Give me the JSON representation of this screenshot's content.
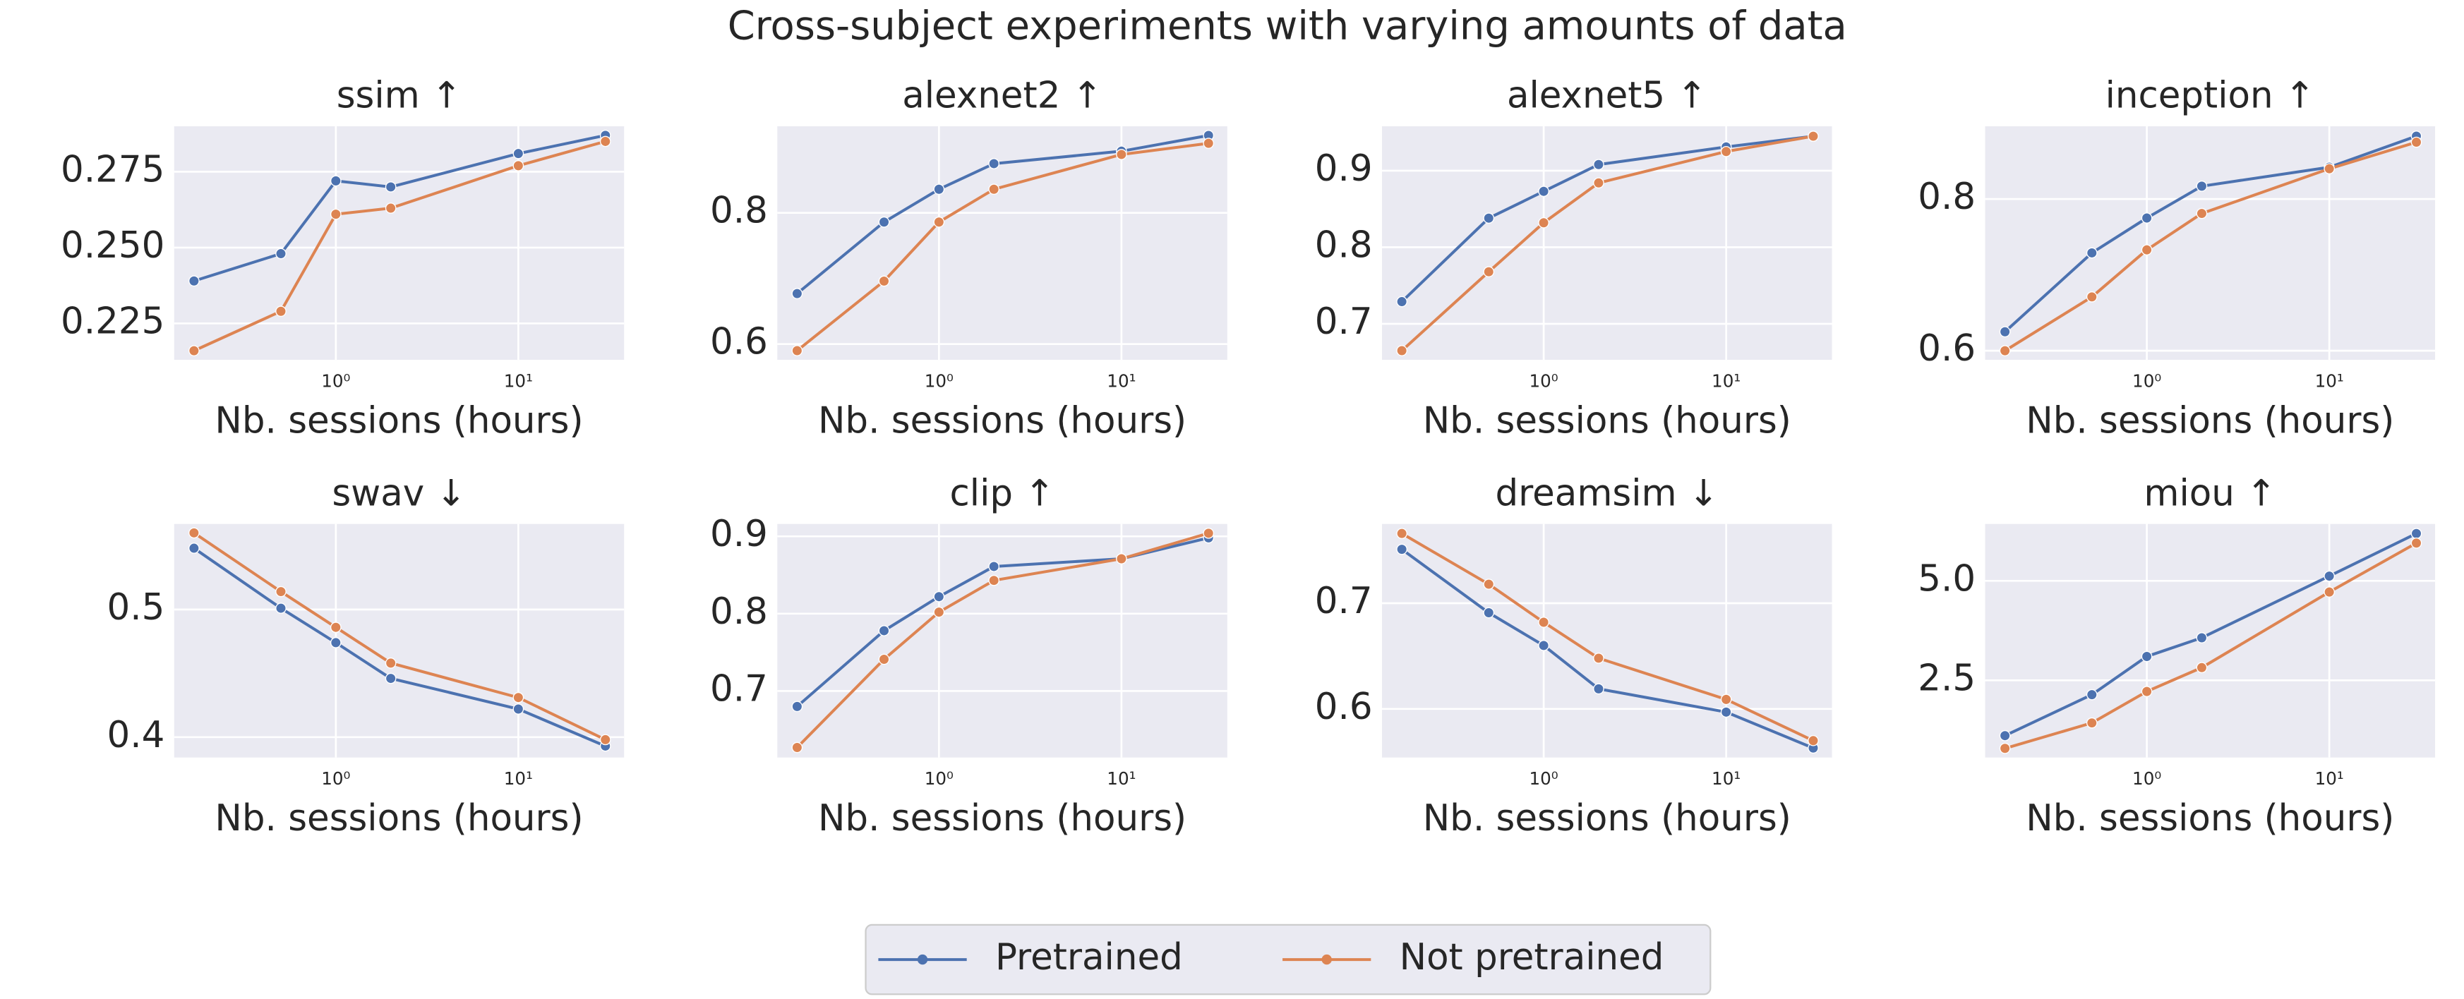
{
  "title": "Cross-subject experiments with varying amounts of data",
  "legend_position": "lower center",
  "chart_data": [
    {
      "type": "line",
      "title": "ssim ↑",
      "x_label": "Nb. sessions (hours)",
      "xscale": "log",
      "grid": true,
      "x": [
        0.167,
        0.5,
        1,
        2,
        10,
        30
      ],
      "xlim": [
        0.13,
        38
      ],
      "xticks": [
        {
          "value": 1,
          "label": "10⁰"
        },
        {
          "value": 10,
          "label": "10¹"
        }
      ],
      "ylim": [
        0.213,
        0.29
      ],
      "yticks": [
        0.225,
        {
          "value": 0.25,
          "label": "0.250"
        },
        0.275
      ],
      "series": [
        {
          "name": "Pretrained",
          "color": "#4c72b0",
          "values": [
            0.239,
            0.248,
            0.272,
            0.27,
            0.281,
            0.287
          ]
        },
        {
          "name": "Not pretrained",
          "color": "#dd8452",
          "values": [
            0.216,
            0.229,
            0.261,
            0.263,
            0.277,
            0.285
          ]
        }
      ]
    },
    {
      "type": "line",
      "title": "alexnet2 ↑",
      "x_label": "Nb. sessions (hours)",
      "xscale": "log",
      "grid": true,
      "x": [
        0.167,
        0.5,
        1,
        2,
        10,
        30
      ],
      "xlim": [
        0.13,
        38
      ],
      "xticks": [
        {
          "value": 1,
          "label": "10⁰"
        },
        {
          "value": 10,
          "label": "10¹"
        }
      ],
      "ylim": [
        0.576,
        0.932
      ],
      "yticks": [
        0.6,
        0.8
      ],
      "series": [
        {
          "name": "Pretrained",
          "color": "#4c72b0",
          "values": [
            0.677,
            0.786,
            0.836,
            0.875,
            0.894,
            0.918
          ]
        },
        {
          "name": "Not pretrained",
          "color": "#dd8452",
          "values": [
            0.59,
            0.696,
            0.786,
            0.836,
            0.889,
            0.906
          ]
        }
      ]
    },
    {
      "type": "line",
      "title": "alexnet5 ↑",
      "x_label": "Nb. sessions (hours)",
      "xscale": "log",
      "grid": true,
      "x": [
        0.167,
        0.5,
        1,
        2,
        10,
        30
      ],
      "xlim": [
        0.13,
        38
      ],
      "xticks": [
        {
          "value": 1,
          "label": "10⁰"
        },
        {
          "value": 10,
          "label": "10¹"
        }
      ],
      "ylim": [
        0.653,
        0.958
      ],
      "yticks": [
        0.7,
        0.8,
        0.9
      ],
      "series": [
        {
          "name": "Pretrained",
          "color": "#4c72b0",
          "values": [
            0.729,
            0.838,
            0.873,
            0.908,
            0.931,
            0.945
          ]
        },
        {
          "name": "Not pretrained",
          "color": "#dd8452",
          "values": [
            0.665,
            0.768,
            0.832,
            0.884,
            0.925,
            0.945
          ]
        }
      ]
    },
    {
      "type": "line",
      "title": "inception ↑",
      "x_label": "Nb. sessions (hours)",
      "xscale": "log",
      "grid": true,
      "x": [
        0.167,
        0.5,
        1,
        2,
        10,
        30
      ],
      "xlim": [
        0.13,
        38
      ],
      "xticks": [
        {
          "value": 1,
          "label": "10⁰"
        },
        {
          "value": 10,
          "label": "10¹"
        }
      ],
      "ylim": [
        0.588,
        0.896
      ],
      "yticks": [
        0.6,
        0.8
      ],
      "series": [
        {
          "name": "Pretrained",
          "color": "#4c72b0",
          "values": [
            0.625,
            0.729,
            0.775,
            0.817,
            0.842,
            0.883
          ]
        },
        {
          "name": "Not pretrained",
          "color": "#dd8452",
          "values": [
            0.6,
            0.671,
            0.733,
            0.781,
            0.84,
            0.875
          ]
        }
      ]
    },
    {
      "type": "line",
      "title": "swav ↓",
      "x_label": "Nb. sessions (hours)",
      "xscale": "log",
      "grid": true,
      "x": [
        0.167,
        0.5,
        1,
        2,
        10,
        30
      ],
      "xlim": [
        0.13,
        38
      ],
      "xticks": [
        {
          "value": 1,
          "label": "10⁰"
        },
        {
          "value": 10,
          "label": "10¹"
        }
      ],
      "ylim": [
        0.384,
        0.567
      ],
      "yticks": [
        0.4,
        0.5
      ],
      "series": [
        {
          "name": "Pretrained",
          "color": "#4c72b0",
          "values": [
            0.548,
            0.501,
            0.474,
            0.446,
            0.422,
            0.393
          ]
        },
        {
          "name": "Not pretrained",
          "color": "#dd8452",
          "values": [
            0.56,
            0.514,
            0.486,
            0.458,
            0.431,
            0.398
          ]
        }
      ]
    },
    {
      "type": "line",
      "title": "clip ↑",
      "x_label": "Nb. sessions (hours)",
      "xscale": "log",
      "grid": true,
      "x": [
        0.167,
        0.5,
        1,
        2,
        10,
        30
      ],
      "xlim": [
        0.13,
        38
      ],
      "xticks": [
        {
          "value": 1,
          "label": "10⁰"
        },
        {
          "value": 10,
          "label": "10¹"
        }
      ],
      "ylim": [
        0.614,
        0.916
      ],
      "yticks": [
        0.7,
        0.8,
        0.9
      ],
      "series": [
        {
          "name": "Pretrained",
          "color": "#4c72b0",
          "values": [
            0.68,
            0.778,
            0.822,
            0.861,
            0.871,
            0.898
          ]
        },
        {
          "name": "Not pretrained",
          "color": "#dd8452",
          "values": [
            0.627,
            0.741,
            0.802,
            0.843,
            0.871,
            0.904
          ]
        }
      ]
    },
    {
      "type": "line",
      "title": "dreamsim ↓",
      "x_label": "Nb. sessions (hours)",
      "xscale": "log",
      "grid": true,
      "x": [
        0.167,
        0.5,
        1,
        2,
        10,
        30
      ],
      "xlim": [
        0.13,
        38
      ],
      "xticks": [
        {
          "value": 1,
          "label": "10⁰"
        },
        {
          "value": 10,
          "label": "10¹"
        }
      ],
      "ylim": [
        0.554,
        0.775
      ],
      "yticks": [
        0.6,
        0.7
      ],
      "series": [
        {
          "name": "Pretrained",
          "color": "#4c72b0",
          "values": [
            0.751,
            0.691,
            0.66,
            0.619,
            0.597,
            0.563
          ]
        },
        {
          "name": "Not pretrained",
          "color": "#dd8452",
          "values": [
            0.766,
            0.718,
            0.682,
            0.648,
            0.609,
            0.57
          ]
        }
      ]
    },
    {
      "type": "line",
      "title": "miou ↑",
      "x_label": "Nb. sessions (hours)",
      "xscale": "log",
      "grid": true,
      "x": [
        0.167,
        0.5,
        1,
        2,
        10,
        30
      ],
      "xlim": [
        0.13,
        38
      ],
      "xticks": [
        {
          "value": 1,
          "label": "10⁰"
        },
        {
          "value": 10,
          "label": "10¹"
        }
      ],
      "ylim": [
        0.56,
        6.43
      ],
      "yticks": [
        2.5,
        {
          "value": 5,
          "label": "5.0"
        }
      ],
      "series": [
        {
          "name": "Pretrained",
          "color": "#4c72b0",
          "values": [
            1.11,
            2.14,
            3.1,
            3.57,
            5.12,
            6.19
          ]
        },
        {
          "name": "Not pretrained",
          "color": "#dd8452",
          "values": [
            0.79,
            1.43,
            2.22,
            2.82,
            4.72,
            5.95
          ]
        }
      ]
    }
  ]
}
